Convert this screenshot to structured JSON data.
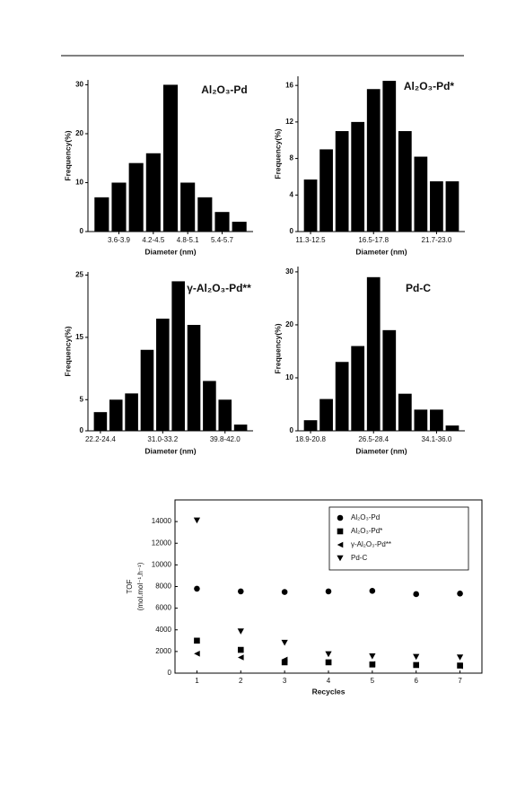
{
  "chart_data": [
    {
      "type": "bar",
      "title": "Al₂O₃-Pd",
      "xlabel": "Diameter (nm)",
      "ylabel": "Frequency(%)",
      "color": "#000000",
      "categories": [
        null,
        "3.6-3.9",
        null,
        "4.2-4.5",
        null,
        "4.8-5.1",
        null,
        "5.4-5.7",
        null
      ],
      "values": [
        7,
        10,
        14,
        16,
        30,
        10,
        7,
        4,
        2
      ],
      "ylim": [
        0,
        31
      ],
      "yticks": [
        0,
        10,
        20,
        30
      ]
    },
    {
      "type": "bar",
      "title": "Al₂O₃-Pd*",
      "xlabel": "Diameter (nm)",
      "ylabel": "Frequency(%)",
      "color": "#000000",
      "categories": [
        "11.3-12.5",
        null,
        null,
        null,
        "16.5-17.8",
        null,
        null,
        null,
        "21.7-23.0",
        null
      ],
      "values": [
        5.7,
        9,
        11,
        12,
        15.6,
        16.5,
        11,
        8.2,
        5.5,
        5.5
      ],
      "ylim": [
        0,
        17
      ],
      "yticks": [
        0,
        4,
        8,
        12,
        16
      ]
    },
    {
      "type": "bar",
      "title": "γ-Al₂O₃-Pd**",
      "xlabel": "Diameter (nm)",
      "ylabel": "Frequency(%)",
      "color": "#000000",
      "categories": [
        "22.2-24.4",
        null,
        null,
        null,
        "31.0-33.2",
        null,
        null,
        null,
        "39.8-42.0",
        null
      ],
      "values": [
        3,
        5,
        6,
        13,
        18,
        24,
        17,
        8,
        5,
        1
      ],
      "ylim": [
        0,
        25.5
      ],
      "yticks": [
        0,
        5,
        15,
        25
      ]
    },
    {
      "type": "bar",
      "title": "Pd-C",
      "xlabel": "Diameter (nm)",
      "ylabel": "Frequency(%)",
      "color": "#000000",
      "categories": [
        "18.9-20.8",
        null,
        null,
        null,
        "26.5-28.4",
        null,
        null,
        null,
        "34.1-36.0",
        null
      ],
      "values": [
        2,
        6,
        13,
        16,
        29,
        19,
        7,
        4,
        4,
        1
      ],
      "ylim": [
        0,
        31
      ],
      "yticks": [
        0,
        10,
        20,
        30
      ]
    },
    {
      "type": "scatter",
      "xlabel": "Recycles",
      "ylabel": [
        "TOF",
        "(mol.mol⁻¹.h⁻¹)"
      ],
      "x": [
        1,
        2,
        3,
        4,
        5,
        6,
        7
      ],
      "xlim": [
        0.5,
        7.5
      ],
      "xticks": [
        1,
        2,
        3,
        4,
        5,
        6,
        7
      ],
      "ylim": [
        0,
        16000
      ],
      "yticks": [
        0,
        2000,
        4000,
        6000,
        8000,
        10000,
        12000,
        14000
      ],
      "legend": "upper right",
      "series": [
        {
          "name": "Al₂O₃-Pd",
          "color": "#000000",
          "marker": "circle",
          "values": [
            7800,
            7550,
            7500,
            7550,
            7600,
            7300,
            7350
          ]
        },
        {
          "name": "Al₂O₃-Pd*",
          "color": "#000000",
          "marker": "square",
          "values": [
            3000,
            2150,
            1000,
            1000,
            800,
            750,
            700
          ]
        },
        {
          "name": "γ-Al₂O₃-Pd**",
          "color": "#000000",
          "marker": "triangle-left",
          "values": [
            1800,
            1450,
            1250,
            1000,
            850,
            750,
            650
          ]
        },
        {
          "name": "Pd-C",
          "color": "#000000",
          "marker": "triangle-down",
          "values": [
            14100,
            3850,
            2800,
            1750,
            1550,
            1500,
            1450
          ]
        }
      ]
    }
  ]
}
